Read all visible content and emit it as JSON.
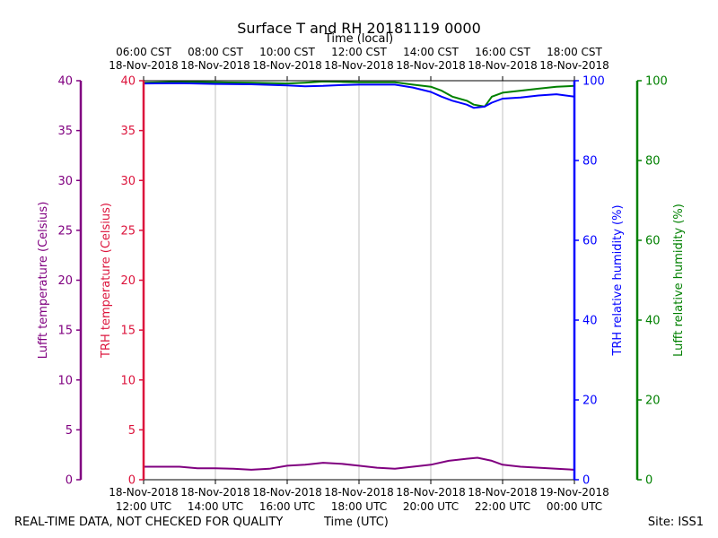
{
  "chart_data": {
    "type": "line",
    "title": "Surface T and RH 20181119 0000",
    "top_axis_label": "Time (local)",
    "xlabel": "Time (UTC)",
    "x_domain_hours_utc": [
      12,
      24
    ],
    "x_ticks_utc": [
      {
        "hour": 12,
        "date": "18-Nov-2018",
        "time": "12:00 UTC"
      },
      {
        "hour": 14,
        "date": "18-Nov-2018",
        "time": "14:00 UTC"
      },
      {
        "hour": 16,
        "date": "18-Nov-2018",
        "time": "16:00 UTC"
      },
      {
        "hour": 18,
        "date": "18-Nov-2018",
        "time": "18:00 UTC"
      },
      {
        "hour": 20,
        "date": "18-Nov-2018",
        "time": "20:00 UTC"
      },
      {
        "hour": 22,
        "date": "18-Nov-2018",
        "time": "22:00 UTC"
      },
      {
        "hour": 24,
        "date": "19-Nov-2018",
        "time": "00:00 UTC"
      }
    ],
    "x_ticks_local": [
      {
        "hour": 12,
        "time": "06:00 CST",
        "date": "18-Nov-2018"
      },
      {
        "hour": 14,
        "time": "08:00 CST",
        "date": "18-Nov-2018"
      },
      {
        "hour": 16,
        "time": "10:00 CST",
        "date": "18-Nov-2018"
      },
      {
        "hour": 18,
        "time": "12:00 CST",
        "date": "18-Nov-2018"
      },
      {
        "hour": 20,
        "time": "14:00 CST",
        "date": "18-Nov-2018"
      },
      {
        "hour": 22,
        "time": "16:00 CST",
        "date": "18-Nov-2018"
      },
      {
        "hour": 24,
        "time": "18:00 CST",
        "date": "18-Nov-2018"
      }
    ],
    "axes": {
      "lufft_temp": {
        "label": "Lufft temperature (Celsius)",
        "range": [
          0,
          40
        ],
        "ticks": [
          0,
          5,
          10,
          15,
          20,
          25,
          30,
          35,
          40
        ],
        "color": "#800080"
      },
      "trh_temp": {
        "label": "TRH temperature (Celsius)",
        "range": [
          0,
          40
        ],
        "ticks": [
          0,
          5,
          10,
          15,
          20,
          25,
          30,
          35,
          40
        ],
        "color": "#dc143c"
      },
      "trh_rh": {
        "label": "TRH relative humidity (%)",
        "range": [
          0,
          100
        ],
        "ticks": [
          0,
          20,
          40,
          60,
          80,
          100
        ],
        "color": "#0000ff"
      },
      "lufft_rh": {
        "label": "Lufft relative humidity (%)",
        "range": [
          0,
          100
        ],
        "ticks": [
          0,
          20,
          40,
          60,
          80,
          100
        ],
        "color": "#008000"
      }
    },
    "series": [
      {
        "name": "Lufft relative humidity",
        "axis": "lufft_rh",
        "color": "#008000",
        "x": [
          12,
          13,
          14,
          15,
          16,
          16.5,
          17,
          17.5,
          18,
          19,
          19.5,
          20,
          20.3,
          20.6,
          21,
          21.2,
          21.5,
          21.7,
          22,
          22.5,
          23,
          23.5,
          24
        ],
        "y": [
          99.5,
          99.7,
          99.6,
          99.5,
          99.3,
          99.5,
          99.8,
          99.7,
          99.6,
          99.6,
          99.0,
          98.5,
          97.5,
          96.0,
          95.0,
          94.0,
          93.5,
          96.0,
          97.0,
          97.5,
          98.0,
          98.5,
          98.7
        ]
      },
      {
        "name": "TRH relative humidity",
        "axis": "trh_rh",
        "color": "#0000ff",
        "x": [
          12,
          13,
          14,
          15,
          16,
          16.5,
          17,
          17.5,
          18,
          19,
          19.5,
          20,
          20.3,
          20.6,
          21,
          21.2,
          21.5,
          21.7,
          22,
          22.5,
          23,
          23.5,
          24
        ],
        "y": [
          99.3,
          99.4,
          99.2,
          99.1,
          98.8,
          98.6,
          98.7,
          98.9,
          99.0,
          99.0,
          98.3,
          97.2,
          96.0,
          95.0,
          94.0,
          93.2,
          93.5,
          94.5,
          95.5,
          95.8,
          96.3,
          96.6,
          96.0
        ]
      },
      {
        "name": "Lufft temperature",
        "axis": "lufft_temp",
        "color": "#800080",
        "x": [
          12,
          13,
          13.5,
          14,
          14.5,
          15,
          15.5,
          16,
          16.5,
          17,
          17.5,
          18,
          18.5,
          19,
          19.5,
          20,
          20.5,
          21,
          21.3,
          21.7,
          22,
          22.5,
          23,
          23.5,
          24
        ],
        "y": [
          1.3,
          1.3,
          1.15,
          1.15,
          1.1,
          1.0,
          1.1,
          1.4,
          1.5,
          1.7,
          1.6,
          1.4,
          1.2,
          1.1,
          1.3,
          1.5,
          1.9,
          2.1,
          2.2,
          1.9,
          1.5,
          1.3,
          1.2,
          1.1,
          1.0
        ]
      }
    ]
  },
  "footer": {
    "left": "REAL-TIME DATA, NOT CHECKED FOR QUALITY",
    "center": "Time (UTC)",
    "right": "Site: ISS1"
  }
}
